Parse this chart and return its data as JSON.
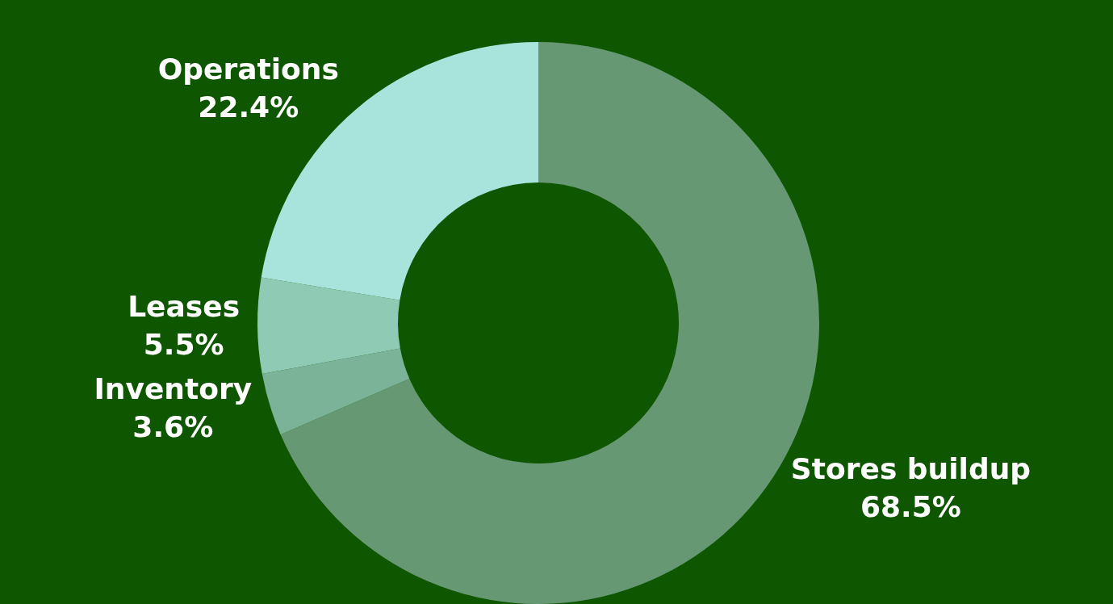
{
  "chart_data": {
    "type": "donut",
    "categories": [
      "Stores buildup",
      "Inventory",
      "Leases",
      "Operations"
    ],
    "values": [
      68.5,
      3.6,
      5.5,
      22.4
    ],
    "value_labels": [
      "68.5%",
      "3.6%",
      "5.5%",
      "22.4%"
    ],
    "colors": [
      "#669873",
      "#7ab397",
      "#8fcab4",
      "#a8e4dc"
    ],
    "legend": false
  }
}
